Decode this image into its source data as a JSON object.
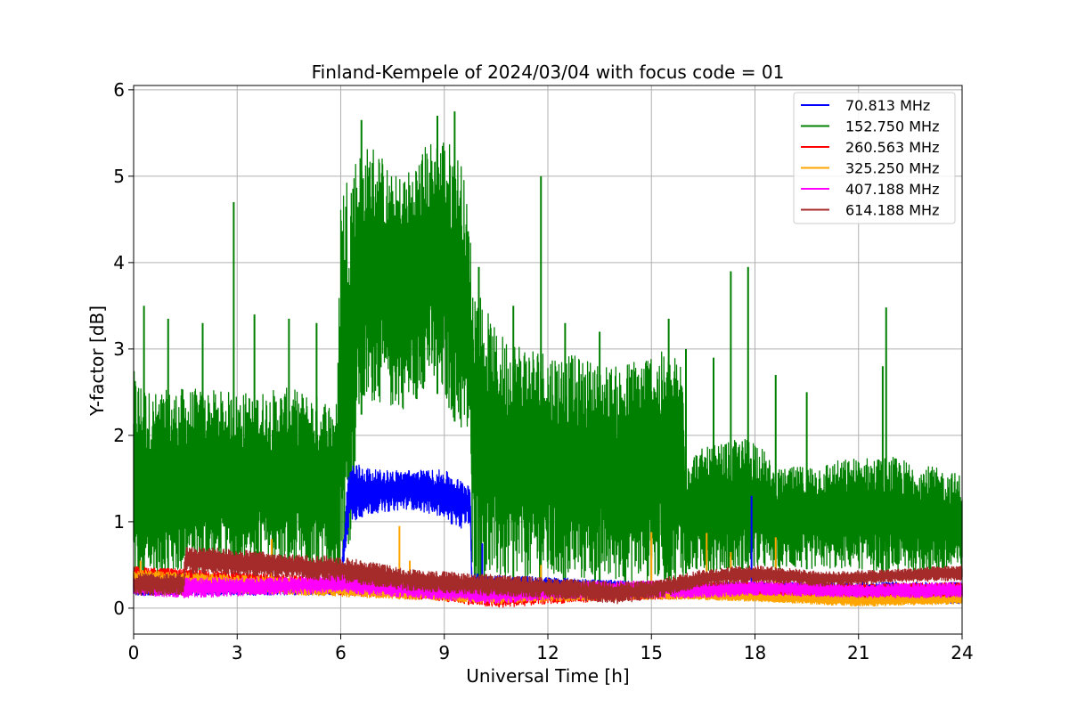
{
  "chart_data": {
    "type": "line",
    "title": "Finland-Kempele of 2024/03/04 with focus code = 01",
    "xlabel": "Universal Time [h]",
    "ylabel": "Y-factor [dB]",
    "xlim": [
      0,
      24
    ],
    "ylim": [
      -0.3,
      6.05
    ],
    "xticks": [
      0,
      3,
      6,
      9,
      12,
      15,
      18,
      21,
      24
    ],
    "yticks": [
      0,
      1,
      2,
      3,
      4,
      5,
      6
    ],
    "grid": true,
    "legend_position": "top-right",
    "series": [
      {
        "name": " 70.813 MHz",
        "color": "#0000ff",
        "band": [
          [
            0,
            0.15,
            0.3
          ],
          [
            6.0,
            0.15,
            0.35
          ],
          [
            6.2,
            0.9,
            1.5
          ],
          [
            6.3,
            1.0,
            1.7
          ],
          [
            7.0,
            1.1,
            1.6
          ],
          [
            8.0,
            1.15,
            1.6
          ],
          [
            9.0,
            1.05,
            1.6
          ],
          [
            9.4,
            0.9,
            1.5
          ],
          [
            9.75,
            1.0,
            1.45
          ],
          [
            9.8,
            0.15,
            0.4
          ],
          [
            15.0,
            0.15,
            0.3
          ],
          [
            24,
            0.05,
            0.3
          ]
        ],
        "spikes": [
          [
            6.2,
            0.85
          ],
          [
            10.1,
            0.75
          ],
          [
            17.9,
            1.3
          ]
        ]
      },
      {
        "name": "152.750 MHz",
        "color": "#008000",
        "band": [
          [
            0,
            0.2,
            2.75
          ],
          [
            0.5,
            0.3,
            2.5
          ],
          [
            1.5,
            0.4,
            2.55
          ],
          [
            3.0,
            0.5,
            2.5
          ],
          [
            4.5,
            0.45,
            2.55
          ],
          [
            5.9,
            0.3,
            2.4
          ],
          [
            6.0,
            0.5,
            4.95
          ],
          [
            6.3,
            0.8,
            5.2
          ],
          [
            6.5,
            2.2,
            5.3
          ],
          [
            7.0,
            2.4,
            5.4
          ],
          [
            7.5,
            2.3,
            5.0
          ],
          [
            8.0,
            2.3,
            5.1
          ],
          [
            8.5,
            2.6,
            5.4
          ],
          [
            9.0,
            2.4,
            5.5
          ],
          [
            9.5,
            2.0,
            5.2
          ],
          [
            9.75,
            1.9,
            4.4
          ],
          [
            9.8,
            0.3,
            3.9
          ],
          [
            10.5,
            0.3,
            3.2
          ],
          [
            12.0,
            0.3,
            3.0
          ],
          [
            14.0,
            0.3,
            2.8
          ],
          [
            15.0,
            0.3,
            3.0
          ],
          [
            15.9,
            0.3,
            2.9
          ],
          [
            16.0,
            0.4,
            1.8
          ],
          [
            18.0,
            0.45,
            2.0
          ],
          [
            18.6,
            0.45,
            1.6
          ],
          [
            21.0,
            0.45,
            1.75
          ],
          [
            22.0,
            0.4,
            1.75
          ],
          [
            24,
            0.4,
            1.55
          ]
        ],
        "spikes": [
          [
            0.3,
            3.5
          ],
          [
            1.0,
            3.35
          ],
          [
            2.0,
            3.3
          ],
          [
            2.9,
            4.7
          ],
          [
            3.5,
            3.4
          ],
          [
            4.5,
            3.35
          ],
          [
            5.3,
            3.3
          ],
          [
            6.6,
            5.65
          ],
          [
            8.2,
            4.95
          ],
          [
            8.8,
            5.7
          ],
          [
            9.3,
            5.75
          ],
          [
            10.0,
            3.95
          ],
          [
            11.0,
            3.5
          ],
          [
            11.8,
            5.0
          ],
          [
            12.5,
            3.3
          ],
          [
            13.5,
            3.2
          ],
          [
            15.5,
            3.35
          ],
          [
            16.0,
            3.0
          ],
          [
            16.8,
            2.9
          ],
          [
            17.3,
            3.9
          ],
          [
            17.8,
            3.95
          ],
          [
            18.6,
            2.7
          ],
          [
            19.5,
            2.5
          ],
          [
            21.7,
            2.8
          ],
          [
            21.8,
            3.48
          ]
        ]
      },
      {
        "name": "260.563 MHz",
        "color": "#ff0000",
        "band": [
          [
            0,
            0.3,
            0.48
          ],
          [
            1.5,
            0.25,
            0.45
          ],
          [
            4.0,
            0.2,
            0.4
          ],
          [
            6.0,
            0.15,
            0.35
          ],
          [
            9.0,
            0.08,
            0.3
          ],
          [
            10.5,
            0.0,
            0.25
          ],
          [
            12.0,
            0.05,
            0.28
          ],
          [
            15.0,
            0.1,
            0.3
          ],
          [
            18.0,
            0.12,
            0.3
          ],
          [
            21.0,
            0.1,
            0.28
          ],
          [
            24,
            0.1,
            0.3
          ]
        ],
        "spikes": []
      },
      {
        "name": "325.250 MHz",
        "color": "#ffa500",
        "band": [
          [
            0,
            0.2,
            0.45
          ],
          [
            2.0,
            0.18,
            0.4
          ],
          [
            5.0,
            0.15,
            0.35
          ],
          [
            8.0,
            0.1,
            0.3
          ],
          [
            10.5,
            0.05,
            0.25
          ],
          [
            14.0,
            0.1,
            0.28
          ],
          [
            16.0,
            0.1,
            0.22
          ],
          [
            18.0,
            0.08,
            0.18
          ],
          [
            21.0,
            0.02,
            0.15
          ],
          [
            24,
            0.05,
            0.15
          ]
        ],
        "spikes": [
          [
            0.2,
            0.55
          ],
          [
            4.0,
            0.8
          ],
          [
            7.7,
            0.95
          ],
          [
            8.0,
            0.55
          ],
          [
            11.8,
            0.5
          ],
          [
            15.0,
            0.88
          ],
          [
            16.6,
            0.87
          ],
          [
            17.3,
            0.65
          ],
          [
            18.6,
            0.82
          ]
        ]
      },
      {
        "name": "407.188 MHz",
        "color": "#ff00ff",
        "band": [
          [
            0,
            0.15,
            0.35
          ],
          [
            1.5,
            0.12,
            0.35
          ],
          [
            4.0,
            0.15,
            0.35
          ],
          [
            6.0,
            0.18,
            0.4
          ],
          [
            8.0,
            0.12,
            0.3
          ],
          [
            10.5,
            0.05,
            0.28
          ],
          [
            12.0,
            0.1,
            0.3
          ],
          [
            15.0,
            0.12,
            0.32
          ],
          [
            16.5,
            0.12,
            0.3
          ],
          [
            18.0,
            0.15,
            0.32
          ],
          [
            21.0,
            0.12,
            0.28
          ],
          [
            24,
            0.12,
            0.3
          ]
        ],
        "spikes": []
      },
      {
        "name": "614.188 MHz",
        "color": "#a52a2a",
        "band": [
          [
            0,
            0.15,
            0.4
          ],
          [
            1.45,
            0.15,
            0.4
          ],
          [
            1.5,
            0.4,
            0.72
          ],
          [
            3.0,
            0.38,
            0.68
          ],
          [
            4.5,
            0.35,
            0.62
          ],
          [
            6.0,
            0.3,
            0.6
          ],
          [
            8.0,
            0.2,
            0.45
          ],
          [
            10.0,
            0.15,
            0.4
          ],
          [
            12.0,
            0.12,
            0.35
          ],
          [
            14.0,
            0.05,
            0.3
          ],
          [
            15.0,
            0.1,
            0.32
          ],
          [
            16.5,
            0.25,
            0.45
          ],
          [
            18.0,
            0.3,
            0.5
          ],
          [
            20.0,
            0.25,
            0.42
          ],
          [
            22.0,
            0.3,
            0.45
          ],
          [
            24,
            0.32,
            0.5
          ]
        ],
        "spikes": []
      }
    ]
  }
}
